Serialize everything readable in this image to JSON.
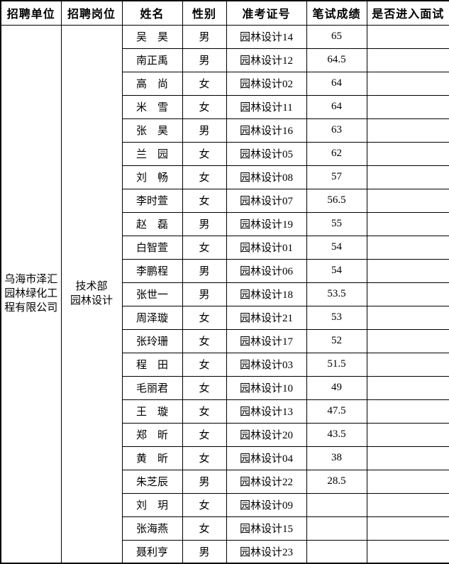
{
  "colors": {
    "background": "#ffffff",
    "border": "#000000",
    "text": "#000000"
  },
  "table": {
    "headers": [
      "招聘单位",
      "招聘岗位",
      "姓名",
      "性别",
      "准考证号",
      "笔试成绩",
      "是否进入面试"
    ],
    "unit": "乌海市泽汇\n园林绿化工\n程有限公司",
    "position": "技术部\n园林设计",
    "rows": [
      {
        "name": "吴　昊",
        "gender": "男",
        "ticket": "园林设计14",
        "score": "65",
        "interview": ""
      },
      {
        "name": "南正禹",
        "gender": "男",
        "ticket": "园林设计12",
        "score": "64.5",
        "interview": ""
      },
      {
        "name": "高　尚",
        "gender": "女",
        "ticket": "园林设计02",
        "score": "64",
        "interview": ""
      },
      {
        "name": "米　雪",
        "gender": "女",
        "ticket": "园林设计11",
        "score": "64",
        "interview": ""
      },
      {
        "name": "张　昊",
        "gender": "男",
        "ticket": "园林设计16",
        "score": "63",
        "interview": ""
      },
      {
        "name": "兰　园",
        "gender": "女",
        "ticket": "园林设计05",
        "score": "62",
        "interview": ""
      },
      {
        "name": "刘　畅",
        "gender": "女",
        "ticket": "园林设计08",
        "score": "57",
        "interview": ""
      },
      {
        "name": "李时萱",
        "gender": "女",
        "ticket": "园林设计07",
        "score": "56.5",
        "interview": ""
      },
      {
        "name": "赵　磊",
        "gender": "男",
        "ticket": "园林设计19",
        "score": "55",
        "interview": ""
      },
      {
        "name": "白智萱",
        "gender": "女",
        "ticket": "园林设计01",
        "score": "54",
        "interview": ""
      },
      {
        "name": "李鹏程",
        "gender": "男",
        "ticket": "园林设计06",
        "score": "54",
        "interview": ""
      },
      {
        "name": "张世一",
        "gender": "男",
        "ticket": "园林设计18",
        "score": "53.5",
        "interview": ""
      },
      {
        "name": "周泽璇",
        "gender": "女",
        "ticket": "园林设计21",
        "score": "53",
        "interview": ""
      },
      {
        "name": "张玲珊",
        "gender": "女",
        "ticket": "园林设计17",
        "score": "52",
        "interview": ""
      },
      {
        "name": "程　田",
        "gender": "女",
        "ticket": "园林设计03",
        "score": "51.5",
        "interview": ""
      },
      {
        "name": "毛丽君",
        "gender": "女",
        "ticket": "园林设计10",
        "score": "49",
        "interview": ""
      },
      {
        "name": "王　璇",
        "gender": "女",
        "ticket": "园林设计13",
        "score": "47.5",
        "interview": ""
      },
      {
        "name": "郑　昕",
        "gender": "女",
        "ticket": "园林设计20",
        "score": "43.5",
        "interview": ""
      },
      {
        "name": "黄　昕",
        "gender": "女",
        "ticket": "园林设计04",
        "score": "38",
        "interview": ""
      },
      {
        "name": "朱芝辰",
        "gender": "男",
        "ticket": "园林设计22",
        "score": "28.5",
        "interview": ""
      },
      {
        "name": "刘　玥",
        "gender": "女",
        "ticket": "园林设计09",
        "score": "",
        "interview": ""
      },
      {
        "name": "张海燕",
        "gender": "女",
        "ticket": "园林设计15",
        "score": "",
        "interview": ""
      },
      {
        "name": "聂利亨",
        "gender": "男",
        "ticket": "园林设计23",
        "score": "",
        "interview": ""
      }
    ]
  }
}
